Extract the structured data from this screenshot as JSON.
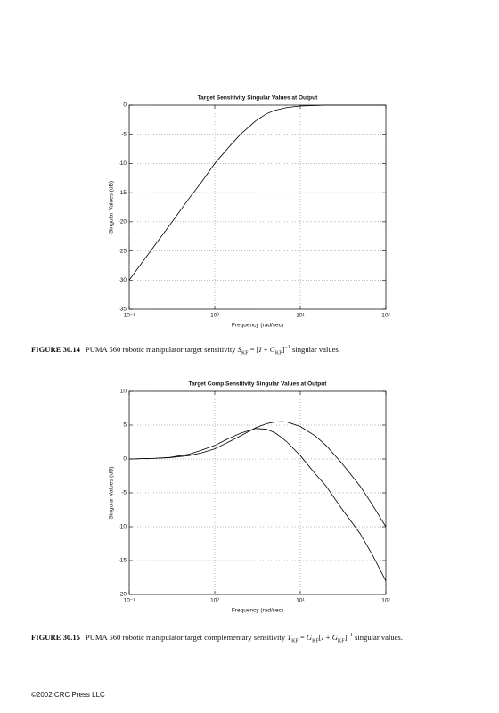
{
  "chart_data": [
    {
      "type": "line",
      "title": "Target Sensitivity Singular Values at Output",
      "x_label": "Frequency (rad/sec)",
      "y_label": "Singular Values (dB)",
      "x": [
        0.1,
        0.2,
        0.3,
        0.5,
        0.7,
        1,
        1.5,
        2,
        3,
        4,
        5,
        7,
        10,
        20,
        50,
        100
      ],
      "series": [
        {
          "color": "#000000",
          "values": [
            -30,
            -24,
            -20.5,
            -16,
            -13.2,
            -10,
            -7,
            -5,
            -2.7,
            -1.5,
            -0.9,
            -0.4,
            -0.15,
            0,
            0,
            0
          ]
        }
      ],
      "log_x": true,
      "grid": true,
      "xlim": [
        0.1,
        100
      ],
      "xticks": [
        {
          "value": 0.1,
          "label": "10⁻¹"
        },
        {
          "value": 1,
          "label": "10⁰"
        },
        {
          "value": 10,
          "label": "10¹"
        },
        {
          "value": 100,
          "label": "10²"
        }
      ],
      "ylim": [
        -35,
        0
      ],
      "yticks": [
        0,
        -5,
        -10,
        -15,
        -20,
        -25,
        -30,
        -35
      ]
    },
    {
      "type": "line",
      "title": "Target Comp Sensitivity Singular Values at Output",
      "x_label": "Frequency (rad/sec)",
      "y_label": "Singular Values (dB)",
      "x": [
        0.1,
        0.2,
        0.3,
        0.5,
        0.7,
        1,
        1.5,
        2,
        3,
        4,
        5,
        6,
        7,
        10,
        15,
        20,
        30,
        50,
        70,
        100
      ],
      "series": [
        {
          "color": "#000000",
          "values": [
            0,
            0.1,
            0.2,
            0.5,
            0.9,
            1.5,
            2.6,
            3.4,
            4.6,
            5.2,
            5.45,
            5.5,
            5.45,
            4.8,
            3.4,
            2,
            -0.5,
            -4,
            -6.8,
            -10
          ]
        },
        {
          "color": "#000000",
          "values": [
            0,
            0.1,
            0.25,
            0.7,
            1.3,
            2,
            3.1,
            3.8,
            4.5,
            4.4,
            3.9,
            3.2,
            2.5,
            0.5,
            -2.2,
            -4,
            -7.2,
            -11,
            -14.2,
            -18
          ]
        }
      ],
      "log_x": true,
      "grid": true,
      "xlim": [
        0.1,
        100
      ],
      "xticks": [
        {
          "value": 0.1,
          "label": "10⁻¹"
        },
        {
          "value": 1,
          "label": "10⁰"
        },
        {
          "value": 10,
          "label": "10¹"
        },
        {
          "value": 100,
          "label": "10²"
        }
      ],
      "ylim": [
        -20,
        10
      ],
      "yticks": [
        10,
        5,
        0,
        -5,
        -10,
        -15,
        -20
      ]
    }
  ],
  "captions": [
    {
      "label": "FIGURE 30.14",
      "parts": [
        "PUMA 560 robotic manipulator target sensitivity ",
        "S",
        "KF",
        " = [",
        "I",
        " + ",
        "G",
        "KF",
        "]",
        "−1",
        " singular values."
      ]
    },
    {
      "label": "FIGURE 30.15",
      "parts": [
        "PUMA 560 robotic manipulator target complementary sensitivity ",
        "T",
        "KF",
        " = ",
        "G",
        "KF",
        "[",
        "I",
        " + ",
        "G",
        "KF",
        "]",
        "−1",
        " singular values."
      ]
    }
  ],
  "footer": "©2002 CRC Press LLC"
}
